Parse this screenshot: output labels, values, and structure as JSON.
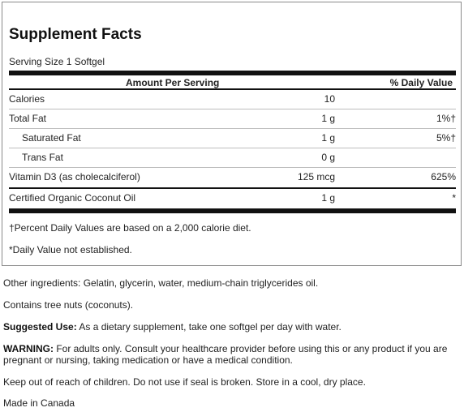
{
  "title": "Supplement Facts",
  "serving_size": "Serving Size 1 Softgel",
  "header": {
    "amount": "Amount Per Serving",
    "daily_value": "% Daily Value"
  },
  "rows": [
    {
      "name": "Calories",
      "amount": "10",
      "dv": ""
    },
    {
      "name": "Total Fat",
      "amount": "1 g",
      "dv": "1%†"
    },
    {
      "name": "Saturated Fat",
      "amount": "1 g",
      "dv": "5%†"
    },
    {
      "name": "Trans Fat",
      "amount": "0 g",
      "dv": ""
    },
    {
      "name": "Vitamin D3 (as cholecalciferol)",
      "amount": "125 mcg",
      "dv": "625%"
    },
    {
      "name": "Certified Organic Coconut Oil",
      "amount": "1 g",
      "dv": "*"
    }
  ],
  "footnotes": {
    "percent_dv": "†Percent Daily Values are based on a 2,000 calorie diet.",
    "not_established": "*Daily Value not established."
  },
  "other_ingredients": "Other ingredients: Gelatin, glycerin, water, medium-chain triglycerides oil.",
  "allergen": "Contains tree nuts (coconuts).",
  "suggested_use": {
    "label": "Suggested Use:",
    "text": " As a dietary supplement, take one softgel per day with water."
  },
  "warning": {
    "label": "WARNING:",
    "text": " For adults only. Consult your healthcare provider before using this or any product if you are pregnant or nursing, taking medication or have a medical condition."
  },
  "storage": "Keep out of reach of children. Do not use if seal is broken. Store in a cool, dry place.",
  "origin": "Made in Canada"
}
